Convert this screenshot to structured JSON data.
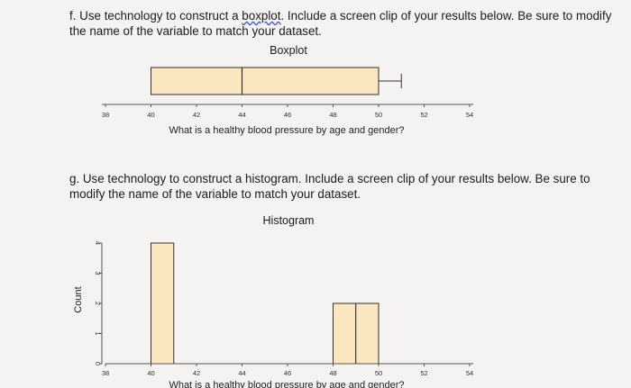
{
  "question_f": {
    "prefix": "f. Use technology to construct a ",
    "underlined": "boxplot",
    "suffix_line1": ". Include a screen clip of your results below. Be sure to modify",
    "line2": "the name of the variable to match your dataset."
  },
  "question_g": {
    "line1": "g. Use technology to construct a histogram. Include a screen clip of your results below. Be sure to",
    "line2": "modify the name of the variable to match your dataset."
  },
  "chart_data": [
    {
      "type": "boxplot",
      "title": "Boxplot",
      "xlabel": "What is a healthy blood pressure by age and gender?",
      "xlim": [
        38,
        54
      ],
      "x_ticks": [
        "38",
        "40",
        "42",
        "44",
        "46",
        "48",
        "50",
        "52",
        "54"
      ],
      "box": {
        "q1": 40,
        "median": 44,
        "q3": 50,
        "whisker_max": 51,
        "fill": "#fae6bf"
      }
    },
    {
      "type": "bar",
      "title": "Histogram",
      "xlabel": "What is a healthy blood pressure by age and gender?",
      "ylabel": "Count",
      "xlim": [
        38,
        54
      ],
      "ylim": [
        0,
        4
      ],
      "x_ticks": [
        "38",
        "40",
        "42",
        "44",
        "46",
        "48",
        "50",
        "52",
        "54"
      ],
      "y_ticks": [
        "0",
        "1",
        "2",
        "3",
        "4"
      ],
      "bins": [
        {
          "start": 40,
          "end": 41,
          "count": 4
        },
        {
          "start": 48,
          "end": 49,
          "count": 2
        },
        {
          "start": 49,
          "end": 50,
          "count": 2
        }
      ],
      "fill": "#fae6bf"
    }
  ]
}
